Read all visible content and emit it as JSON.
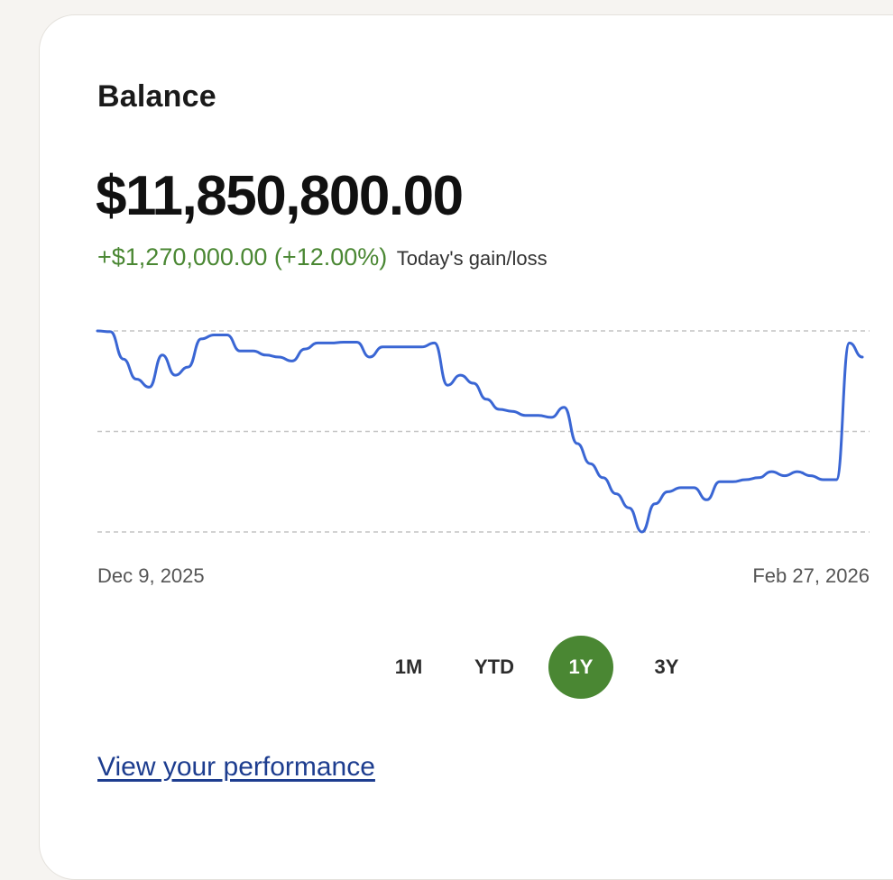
{
  "card": {
    "title": "Balance",
    "balance": "$11,850,800.00",
    "gain": "+$1,270,000.00 (+12.00%)",
    "gain_label": "Today's gain/loss",
    "gain_color": "#4a8733"
  },
  "chart_data": {
    "type": "line",
    "x_start_label": "Dec 9, 2025",
    "x_end_label": "Feb 27, 2026",
    "line_color": "#3a66d4",
    "grid": "dashed horizontal",
    "gridlines": 3,
    "series": [
      {
        "values": [
          100,
          99.8,
          93,
          88,
          86,
          94,
          89,
          91,
          98,
          99,
          99,
          95,
          95,
          94,
          93.5,
          92.5,
          95.5,
          97,
          97,
          97.2,
          97.2,
          93.5,
          96,
          96,
          96,
          96,
          97,
          86.5,
          89,
          87,
          83,
          80.5,
          80,
          79,
          79,
          78.5,
          81,
          72,
          67,
          63.5,
          59.5,
          56,
          50,
          57,
          60,
          61,
          61,
          58,
          62.5,
          62.5,
          63,
          63.5,
          65,
          64,
          65,
          64,
          63,
          63,
          97,
          93.5
        ]
      }
    ]
  },
  "ranges": {
    "items": [
      "1M",
      "YTD",
      "1Y",
      "3Y"
    ],
    "active": "1Y",
    "active_color": "#4a8733"
  },
  "link": {
    "performance": "View your performance"
  }
}
